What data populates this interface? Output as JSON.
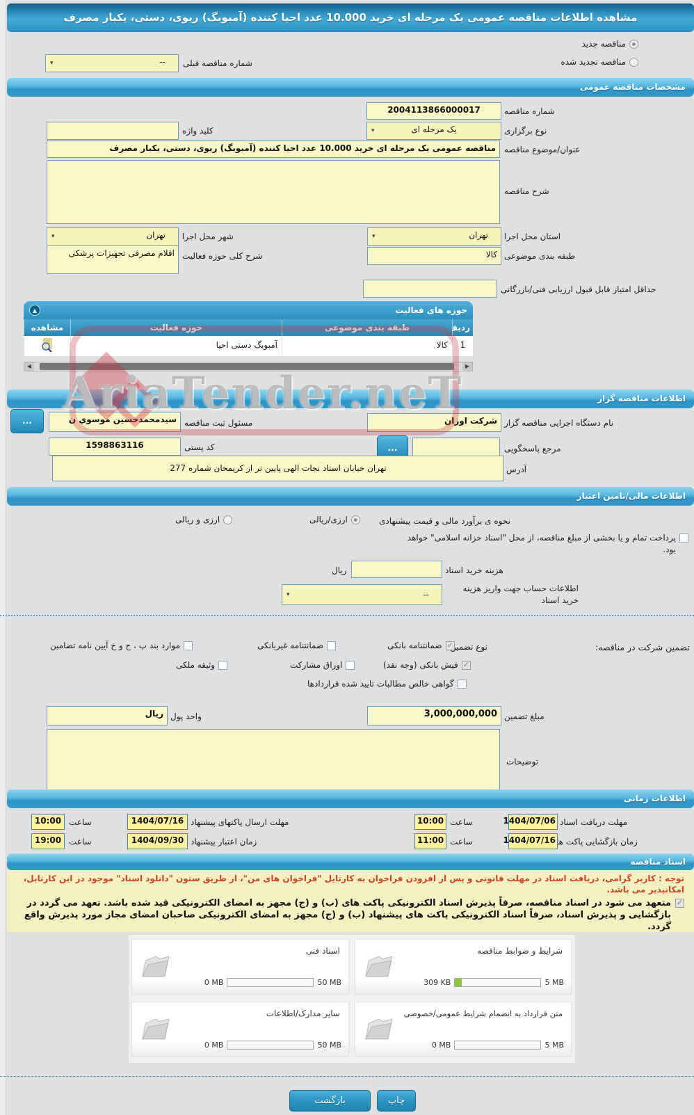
{
  "colors": {
    "accent_blue": "#2f94c5",
    "field_yellow": "#faf7c6",
    "notice_red": "#cc4422",
    "progress_green": "#8dc63f"
  },
  "watermark": "AriaTender.neT",
  "page": {
    "title": "مشاهده اطلاعات مناقصه عمومی یک مرحله ای خرید 10.000 عدد احیا کننده (آمبوبگ) ریوی، دستی، یکبار مصرف"
  },
  "top": {
    "radio_new": "مناقصه جدید",
    "new_selected": true,
    "radio_renewed": "مناقصه تجدید شده",
    "renewed_selected": false,
    "prev_number_label": "شماره مناقصه قبلی",
    "prev_number_value": "--"
  },
  "general": {
    "header": "مشخصات مناقصه عمومی",
    "tender_number_label": "شماره مناقصه",
    "tender_number": "2004113866000017",
    "type_label": "نوع برگزاری",
    "type_value": "یک مرحله ای",
    "keyword_label": "کلید واژه",
    "keyword_value": "",
    "subject_label": "عنوان/موضوع مناقصه",
    "subject_value": "مناقصه عمومی یک مرحله ای خرید 10.000 عدد احیا کننده (آمبوبگ) ریوی، دستی، یکبار مصرف",
    "desc_label": "شرح مناقصه",
    "desc_value": "",
    "province_label": "استان محل اجرا",
    "province_value": "تهران",
    "city_label": "شهر محل اجرا",
    "city_value": "تهران",
    "category_label": "طبقه بندی موضوعی",
    "category_value": "کالا",
    "activity_desc_label": "شرح کلی حوزه فعالیت",
    "activity_desc_value": "اقلام مصرفی تجهیزات پزشکی",
    "min_score_label": "حداقل امتیاز قابل قبول ارزیابی فنی/بازرگانی",
    "min_score_value": ""
  },
  "activity_table": {
    "header": "حوزه های فعالیت",
    "columns": {
      "row": "ردیف",
      "category": "طبقه بندی موضوعی",
      "activity": "حوزه فعالیت",
      "view": "مشاهده"
    },
    "rows": [
      {
        "row": "1",
        "category": "کالا",
        "activity": "آمبوبگ دستی احیا"
      }
    ]
  },
  "agency": {
    "header": "اطلاعات مناقصه گزار",
    "name_label": "نام دستگاه اجرایی مناقصه گزار",
    "name_value": "شرکت اوزان",
    "registrar_label": "مسئول ثبت مناقصه",
    "registrar_value": "سیدمحمدحسین موسوي ن",
    "more_button": "...",
    "contact_label": "مرجع پاسخگویی",
    "contact_value": "",
    "postal_label": "کد پستی",
    "postal_value": "1598863116",
    "address_label": "آدرس",
    "address_value": "تهران خیابان استاد نجات الهی پایین تر از کریمخان شماره 277"
  },
  "financial": {
    "header": "اطلاعات مالی/تامین اعتبار",
    "estimate_label": "نحوه ی برآورد مالی و قیمت پیشنهادی",
    "estimate_options": [
      {
        "label": "ارزی/ریالی",
        "selected": true
      },
      {
        "label": "ارزی و ریالی",
        "selected": false
      }
    ],
    "treasury_note": "پرداخت تمام و یا بخشی از مبلغ مناقصه، از محل \"اسناد خزانه اسلامی\" خواهد بود.",
    "treasury_checked": false,
    "doc_fee_label": "هزینه خرید اسناد",
    "doc_fee_value": "",
    "rial_label": "ریال",
    "account_label": "اطلاعات حساب جهت واریز هزینه خرید اسناد",
    "account_value": "--",
    "guarantee_label": "تضمین شرکت در مناقصه:",
    "guarantee_type_label": "نوع تضمین",
    "options": [
      {
        "label": "ضمانتنامه بانکی",
        "checked": true
      },
      {
        "label": "ضمانتنامه غیربانکی",
        "checked": false
      },
      {
        "label": "موارد بند پ ، ح و خ آیین نامه تضامین",
        "checked": false
      },
      {
        "label": "فیش بانکی (وجه نقد)",
        "checked": true
      },
      {
        "label": "اوراق مشارکت",
        "checked": false
      },
      {
        "label": "وثیقه ملکی",
        "checked": false
      },
      {
        "label": "گواهی خالص مطالبات تایید شده قراردادها",
        "checked": false
      }
    ],
    "amount_label": "مبلغ تضمین",
    "amount_value": "3,000,000,000",
    "currency_label": "واحد پول",
    "currency_value": "ریال",
    "notes_label": "توضیحات",
    "notes_value": ""
  },
  "timing": {
    "header": "اطلاعات زمانی",
    "rows": [
      {
        "label": "مهلت دریافت اسناد",
        "date": "1404/07/06",
        "time_label": "ساعت",
        "time": "10:00"
      },
      {
        "label": "مهلت ارسال پاکتهای پیشنهاد",
        "date": "1404/07/16",
        "time_label": "ساعت",
        "time": "10:00"
      },
      {
        "label": "زمان بازگشایی پاکت ها",
        "date": "1404/07/16",
        "time_label": "ساعت",
        "time": "11:00"
      },
      {
        "label": "زمان اعتبار پیشنهاد",
        "date": "1404/09/30",
        "time_label": "ساعت",
        "time": "19:00"
      }
    ]
  },
  "documents": {
    "header": "اسناد مناقصه",
    "notice": "توجه : کاربر گرامی، دریافت اسناد در مهلت قانونی و پس از افزودن فراخوان به کارتابل \"فراخوان های من\"، از طریق ستون \"دانلود اسناد\" موجود در این کارتابل، امکانپذیر می باشد.",
    "commitment": "متعهد می شود در اسناد مناقصه، صرفاً پذیرش اسناد الکترونیکی پاکت های (ب) و (ج) مجهز به امضای الکترونیکی قید شده باشد. تعهد می گردد در بازگشایی و پذیرش اسناد، صرفاً اسناد الکترونیکی پاکت های پیشنهاد (ب) و (ج) مجهز به امضای الکترونیکی صاحبان امضای مجاز مورد پذیرش واقع گردد.",
    "commitment_checked": true,
    "files": [
      {
        "title": "شرایط و ضوابط مناقصه",
        "current": "309 KB",
        "max": "5 MB",
        "fill": 8
      },
      {
        "title": "اسناد فنی",
        "current": "0 MB",
        "max": "50 MB",
        "fill": 0
      },
      {
        "title": "متن قرارداد به انضمام شرایط عمومی/خصوصی",
        "current": "0 MB",
        "max": "5 MB",
        "fill": 0
      },
      {
        "title": "سایر مدارک/اطلاعات",
        "current": "0 MB",
        "max": "50 MB",
        "fill": 0
      }
    ]
  },
  "footer": {
    "back_button": "بازگشت",
    "print_button": "چاپ"
  }
}
